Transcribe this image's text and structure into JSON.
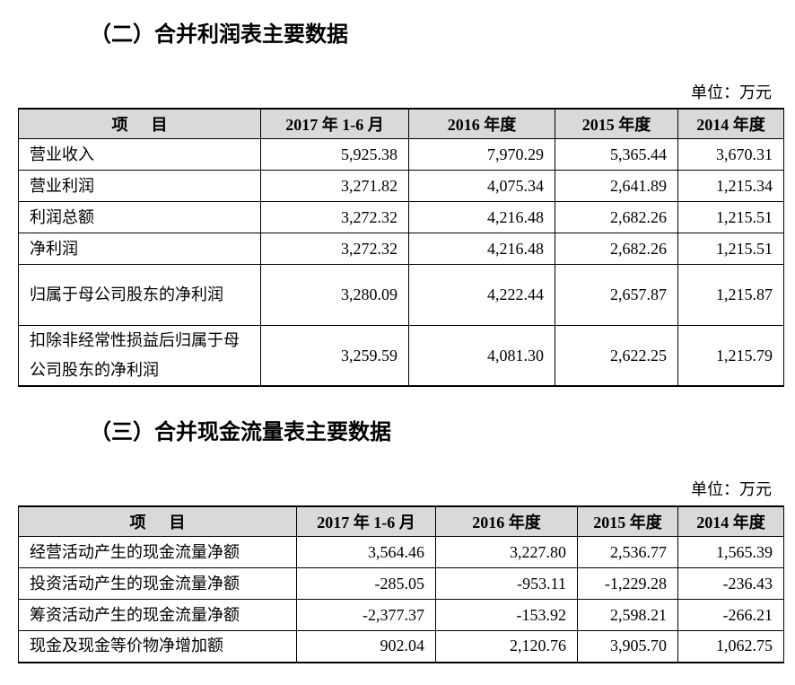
{
  "sections": [
    {
      "title": "（二）合并利润表主要数据",
      "unit": "单位：万元",
      "table": {
        "header": [
          "项 目",
          "2017 年 1-6 月",
          "2016 年度",
          "2015 年度",
          "2014 年度"
        ],
        "rows": [
          [
            "营业收入",
            "5,925.38",
            "7,970.29",
            "5,365.44",
            "3,670.31"
          ],
          [
            "营业利润",
            "3,271.82",
            "4,075.34",
            "2,641.89",
            "1,215.34"
          ],
          [
            "利润总额",
            "3,272.32",
            "4,216.48",
            "2,682.26",
            "1,215.51"
          ],
          [
            "净利润",
            "3,272.32",
            "4,216.48",
            "2,682.26",
            "1,215.51"
          ],
          [
            "归属于母公司股东的净利润",
            "3,280.09",
            "4,222.44",
            "2,657.87",
            "1,215.87"
          ],
          [
            "扣除非经常性损益后归属于母公司股东的净利润",
            "3,259.59",
            "4,081.30",
            "2,622.25",
            "1,215.79"
          ]
        ]
      }
    },
    {
      "title": "（三）合并现金流量表主要数据",
      "unit": "单位：万元",
      "table": {
        "header": [
          "项 目",
          "2017 年 1-6 月",
          "2016 年度",
          "2015 年度",
          "2014 年度"
        ],
        "rows": [
          [
            "经营活动产生的现金流量净额",
            "3,564.46",
            "3,227.80",
            "2,536.77",
            "1,565.39"
          ],
          [
            "投资活动产生的现金流量净额",
            "-285.05",
            "-953.11",
            "-1,229.28",
            "-236.43"
          ],
          [
            "筹资活动产生的现金流量净额",
            "-2,377.37",
            "-153.92",
            "2,598.21",
            "-266.21"
          ],
          [
            "现金及现金等价物净增加额",
            "902.04",
            "2,120.76",
            "3,905.70",
            "1,062.75"
          ]
        ]
      }
    }
  ]
}
